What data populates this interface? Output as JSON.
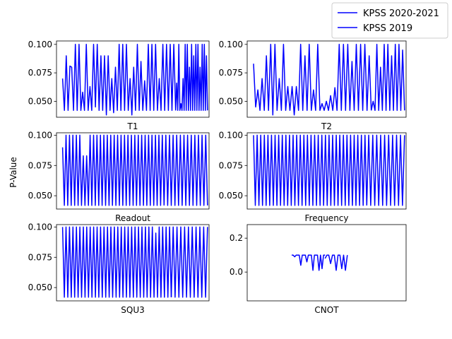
{
  "figure": {
    "ylabel": "P-Value",
    "legend": {
      "placement": "top-right",
      "entries": [
        {
          "name": "KPSS 2020-2021",
          "color": "#0000ff"
        },
        {
          "name": "KPSS 2019",
          "color": "#0000ff"
        }
      ]
    }
  },
  "chart_data": [
    {
      "type": "line",
      "title": "",
      "xlabel": "T1",
      "ylabel": "",
      "ylim": [
        0.036,
        0.103
      ],
      "yticks": [
        "0.100",
        "0.075",
        "0.050"
      ],
      "ytick_values": [
        0.1,
        0.075,
        0.05
      ],
      "series": [
        {
          "name": "KPSS 2020-2021",
          "color": "#0000ff",
          "values": [
            0.07,
            0.042,
            0.09,
            0.042,
            0.081,
            0.08,
            0.042,
            0.1,
            0.042,
            0.1,
            0.042,
            0.058,
            0.042,
            0.1,
            0.042,
            0.063,
            0.042,
            0.1,
            0.045,
            0.1,
            0.042,
            0.09,
            0.042,
            0.09,
            0.038,
            0.09,
            0.042,
            0.07,
            0.04,
            0.08,
            0.042,
            0.1,
            0.042,
            0.1,
            0.042,
            0.1,
            0.042,
            0.07,
            0.038,
            0.08,
            0.042,
            0.1,
            0.042,
            0.085,
            0.042,
            0.068,
            0.042,
            0.1,
            0.042,
            0.1,
            0.042,
            0.1,
            0.042,
            0.07,
            0.042,
            0.1,
            0.042,
            0.1,
            0.042,
            0.1,
            0.042,
            0.1,
            0.042
          ]
        },
        {
          "name": "KPSS 2019",
          "color": "#0000ff",
          "values": [
            0.042,
            0.066,
            0.042,
            0.1,
            0.042,
            0.048,
            0.042,
            0.07,
            0.042,
            0.1,
            0.042,
            0.1,
            0.042,
            0.08,
            0.042,
            0.1,
            0.042,
            0.09,
            0.042,
            0.1,
            0.042,
            0.1,
            0.042,
            0.08,
            0.042,
            0.1,
            0.042,
            0.1,
            0.042,
            0.09,
            0.042
          ]
        }
      ]
    },
    {
      "type": "line",
      "title": "",
      "xlabel": "T2",
      "ylabel": "",
      "ylim": [
        0.036,
        0.103
      ],
      "yticks": [
        "0.100",
        "0.075",
        "0.050"
      ],
      "ytick_values": [
        0.1,
        0.075,
        0.05
      ],
      "series": [
        {
          "name": "KPSS 2020-2021",
          "color": "#0000ff",
          "values": [
            0.083,
            0.045,
            0.06,
            0.042,
            0.07,
            0.042,
            0.09,
            0.042,
            0.1,
            0.038,
            0.1,
            0.042,
            0.07,
            0.042,
            0.1,
            0.042,
            0.063,
            0.042,
            0.063,
            0.038,
            0.063,
            0.042,
            0.1,
            0.042,
            0.09,
            0.042,
            0.1,
            0.042,
            0.06,
            0.042,
            0.1,
            0.042,
            0.048,
            0.042,
            0.05,
            0.042,
            0.055,
            0.042,
            0.062,
            0.042,
            0.1,
            0.042,
            0.1,
            0.042,
            0.1,
            0.042,
            0.085,
            0.042,
            0.1,
            0.042,
            0.1,
            0.042,
            0.1,
            0.042,
            0.09,
            0.042
          ]
        },
        {
          "name": "KPSS 2019",
          "color": "#0000ff",
          "values": [
            0.042,
            0.05,
            0.042,
            0.1,
            0.042,
            0.08,
            0.042,
            0.1,
            0.042,
            0.1,
            0.042,
            0.09,
            0.042,
            0.1,
            0.042,
            0.1,
            0.042,
            0.095,
            0.042
          ]
        }
      ]
    },
    {
      "type": "line",
      "title": "",
      "xlabel": "Readout",
      "ylabel": "P-Value",
      "ylim": [
        0.039,
        0.102
      ],
      "yticks": [
        "0.100",
        "0.075",
        "0.050"
      ],
      "ytick_values": [
        0.1,
        0.075,
        0.05
      ],
      "series": [
        {
          "name": "KPSS 2020-2021",
          "color": "#0000ff",
          "values": [
            0.09,
            0.042,
            0.1,
            0.042,
            0.1,
            0.042,
            0.1,
            0.042,
            0.1,
            0.042,
            0.1,
            0.042,
            0.083,
            0.042,
            0.083,
            0.042,
            0.1,
            0.042,
            0.1,
            0.042,
            0.1,
            0.042,
            0.1,
            0.042,
            0.1,
            0.042,
            0.1,
            0.042,
            0.1,
            0.042,
            0.1,
            0.042,
            0.1,
            0.042,
            0.1,
            0.042,
            0.1,
            0.042,
            0.1,
            0.042,
            0.1,
            0.042,
            0.1,
            0.042,
            0.1,
            0.042,
            0.1,
            0.042,
            0.1,
            0.042,
            0.1,
            0.042,
            0.1,
            0.042,
            0.1,
            0.042,
            0.1,
            0.042,
            0.1,
            0.042
          ]
        },
        {
          "name": "KPSS 2019",
          "color": "#0000ff",
          "values": [
            0.042,
            0.1,
            0.042,
            0.1,
            0.042,
            0.1,
            0.042,
            0.1,
            0.042,
            0.1,
            0.042,
            0.1,
            0.042,
            0.1,
            0.042,
            0.1,
            0.042,
            0.1,
            0.042,
            0.1,
            0.042,
            0.1,
            0.042,
            0.1,
            0.042
          ]
        }
      ]
    },
    {
      "type": "line",
      "title": "",
      "xlabel": "Frequency",
      "ylabel": "",
      "ylim": [
        0.039,
        0.102
      ],
      "yticks": [
        "0.100",
        "0.075",
        "0.050"
      ],
      "ytick_values": [
        0.1,
        0.075,
        0.05
      ],
      "series": [
        {
          "name": "KPSS 2020-2021",
          "color": "#0000ff",
          "values": [
            0.1,
            0.042,
            0.1,
            0.042,
            0.1,
            0.042,
            0.1,
            0.042,
            0.1,
            0.042,
            0.1,
            0.042,
            0.1,
            0.042,
            0.1,
            0.042,
            0.1,
            0.042,
            0.1,
            0.042,
            0.1,
            0.042,
            0.1,
            0.042,
            0.1,
            0.042,
            0.1,
            0.042,
            0.1,
            0.042,
            0.1,
            0.042,
            0.1,
            0.042,
            0.1,
            0.042,
            0.1,
            0.042,
            0.1,
            0.042,
            0.1,
            0.042,
            0.1,
            0.042,
            0.1,
            0.042,
            0.1,
            0.042,
            0.1,
            0.042,
            0.1,
            0.042,
            0.1,
            0.042,
            0.1,
            0.042,
            0.1,
            0.042,
            0.1,
            0.042,
            0.1,
            0.042,
            0.1,
            0.042
          ]
        },
        {
          "name": "KPSS 2019",
          "color": "#0000ff",
          "values": [
            0.042,
            0.1,
            0.042,
            0.1,
            0.042,
            0.1,
            0.042,
            0.1,
            0.042,
            0.1,
            0.042,
            0.1,
            0.042,
            0.1,
            0.042,
            0.1,
            0.042,
            0.1,
            0.042,
            0.1
          ]
        }
      ]
    },
    {
      "type": "line",
      "title": "",
      "xlabel": "SQU3",
      "ylabel": "",
      "ylim": [
        0.039,
        0.102
      ],
      "yticks": [
        "0.100",
        "0.075",
        "0.050"
      ],
      "ytick_values": [
        0.1,
        0.075,
        0.05
      ],
      "series": [
        {
          "name": "KPSS 2020-2021",
          "color": "#0000ff",
          "values": [
            0.1,
            0.042,
            0.1,
            0.042,
            0.1,
            0.042,
            0.1,
            0.042,
            0.1,
            0.042,
            0.1,
            0.042,
            0.1,
            0.042,
            0.1,
            0.042,
            0.1,
            0.042,
            0.1,
            0.042,
            0.1,
            0.042,
            0.1,
            0.042,
            0.1,
            0.042,
            0.1,
            0.042,
            0.1,
            0.042,
            0.1,
            0.042,
            0.1,
            0.042,
            0.1,
            0.042,
            0.1,
            0.042,
            0.1,
            0.042,
            0.1,
            0.042,
            0.1,
            0.042,
            0.1,
            0.042,
            0.1,
            0.042,
            0.1,
            0.042,
            0.1,
            0.042,
            0.1,
            0.042,
            0.095,
            0.042,
            0.1,
            0.042,
            0.1,
            0.042,
            0.1,
            0.042,
            0.1,
            0.042
          ]
        },
        {
          "name": "KPSS 2019",
          "color": "#0000ff",
          "values": [
            0.042,
            0.1,
            0.042,
            0.1,
            0.042,
            0.1,
            0.042,
            0.1,
            0.042,
            0.1,
            0.042,
            0.1,
            0.042,
            0.1,
            0.042,
            0.1,
            0.042,
            0.1,
            0.042,
            0.1
          ]
        }
      ]
    },
    {
      "type": "line",
      "title": "",
      "xlabel": "CNOT",
      "ylabel": "",
      "ylim": [
        -0.17,
        0.28
      ],
      "yticks": [
        "0.2",
        "0.0"
      ],
      "ytick_values": [
        0.2,
        0.0
      ],
      "series": [
        {
          "name": "KPSS 2020-2021",
          "color": "#0000ff",
          "values": [
            0.1,
            0.1,
            0.09,
            0.1,
            0.1,
            0.1,
            0.04,
            0.1,
            0.1,
            0.1,
            0.06,
            0.1,
            0.1,
            0.1,
            0.01,
            0.1,
            0.1,
            0.1,
            0.01,
            0.1,
            0.02,
            0.1,
            0.1
          ]
        },
        {
          "name": "KPSS 2019",
          "color": "#0000ff",
          "values": [
            0.08,
            0.1,
            0.1,
            0.05,
            0.1,
            0.1,
            0.01,
            0.1,
            0.1,
            0.02,
            0.1,
            0.01,
            0.1
          ]
        }
      ]
    }
  ]
}
